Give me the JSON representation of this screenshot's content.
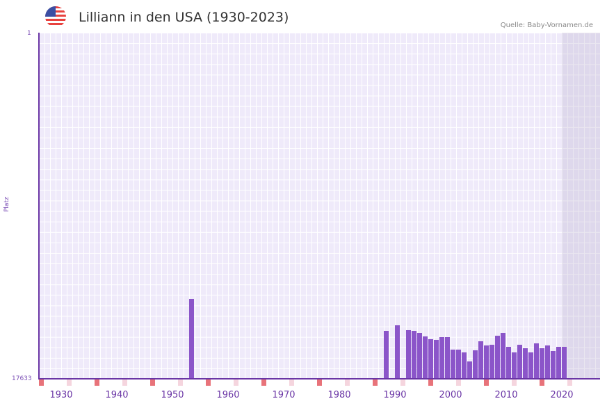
{
  "header": {
    "title": "Lilliann in den USA (1930-2023)",
    "source": "Quelle: Baby-Vornamen.de",
    "flag_icon": "us-flag-icon"
  },
  "colors": {
    "bar": "#8b55c9",
    "axis": "#6a35a5",
    "grid_bg": "#efeafa",
    "marker_strong": "#e8737a",
    "marker_light": "#f5d5de"
  },
  "chart_data": {
    "type": "bar",
    "title": "Lilliann in den USA (1930-2023)",
    "xlabel": "",
    "ylabel": "Platz",
    "y_inverted": true,
    "ylim": [
      1,
      17633
    ],
    "y_ticks": [
      "1",
      "17633"
    ],
    "x_ticks": [
      "1930",
      "1940",
      "1950",
      "1960",
      "1970",
      "1980",
      "1990",
      "2000",
      "2010",
      "2020"
    ],
    "xrange": [
      1928,
      2028
    ],
    "grid": true,
    "categories": [
      1955,
      1990,
      1992,
      1994,
      1995,
      1996,
      1997,
      1998,
      1999,
      2000,
      2001,
      2002,
      2003,
      2004,
      2005,
      2006,
      2007,
      2008,
      2009,
      2010,
      2011,
      2012,
      2013,
      2014,
      2015,
      2016,
      2017,
      2018,
      2019,
      2020,
      2021,
      2022
    ],
    "values": [
      13570,
      15200,
      14920,
      15170,
      15200,
      15310,
      15490,
      15630,
      15660,
      15520,
      15520,
      16160,
      16160,
      16300,
      16760,
      16190,
      15730,
      15950,
      15910,
      15450,
      15310,
      15990,
      16270,
      15910,
      16090,
      16270,
      15840,
      16090,
      15950,
      16230,
      15990,
      15990
    ]
  }
}
